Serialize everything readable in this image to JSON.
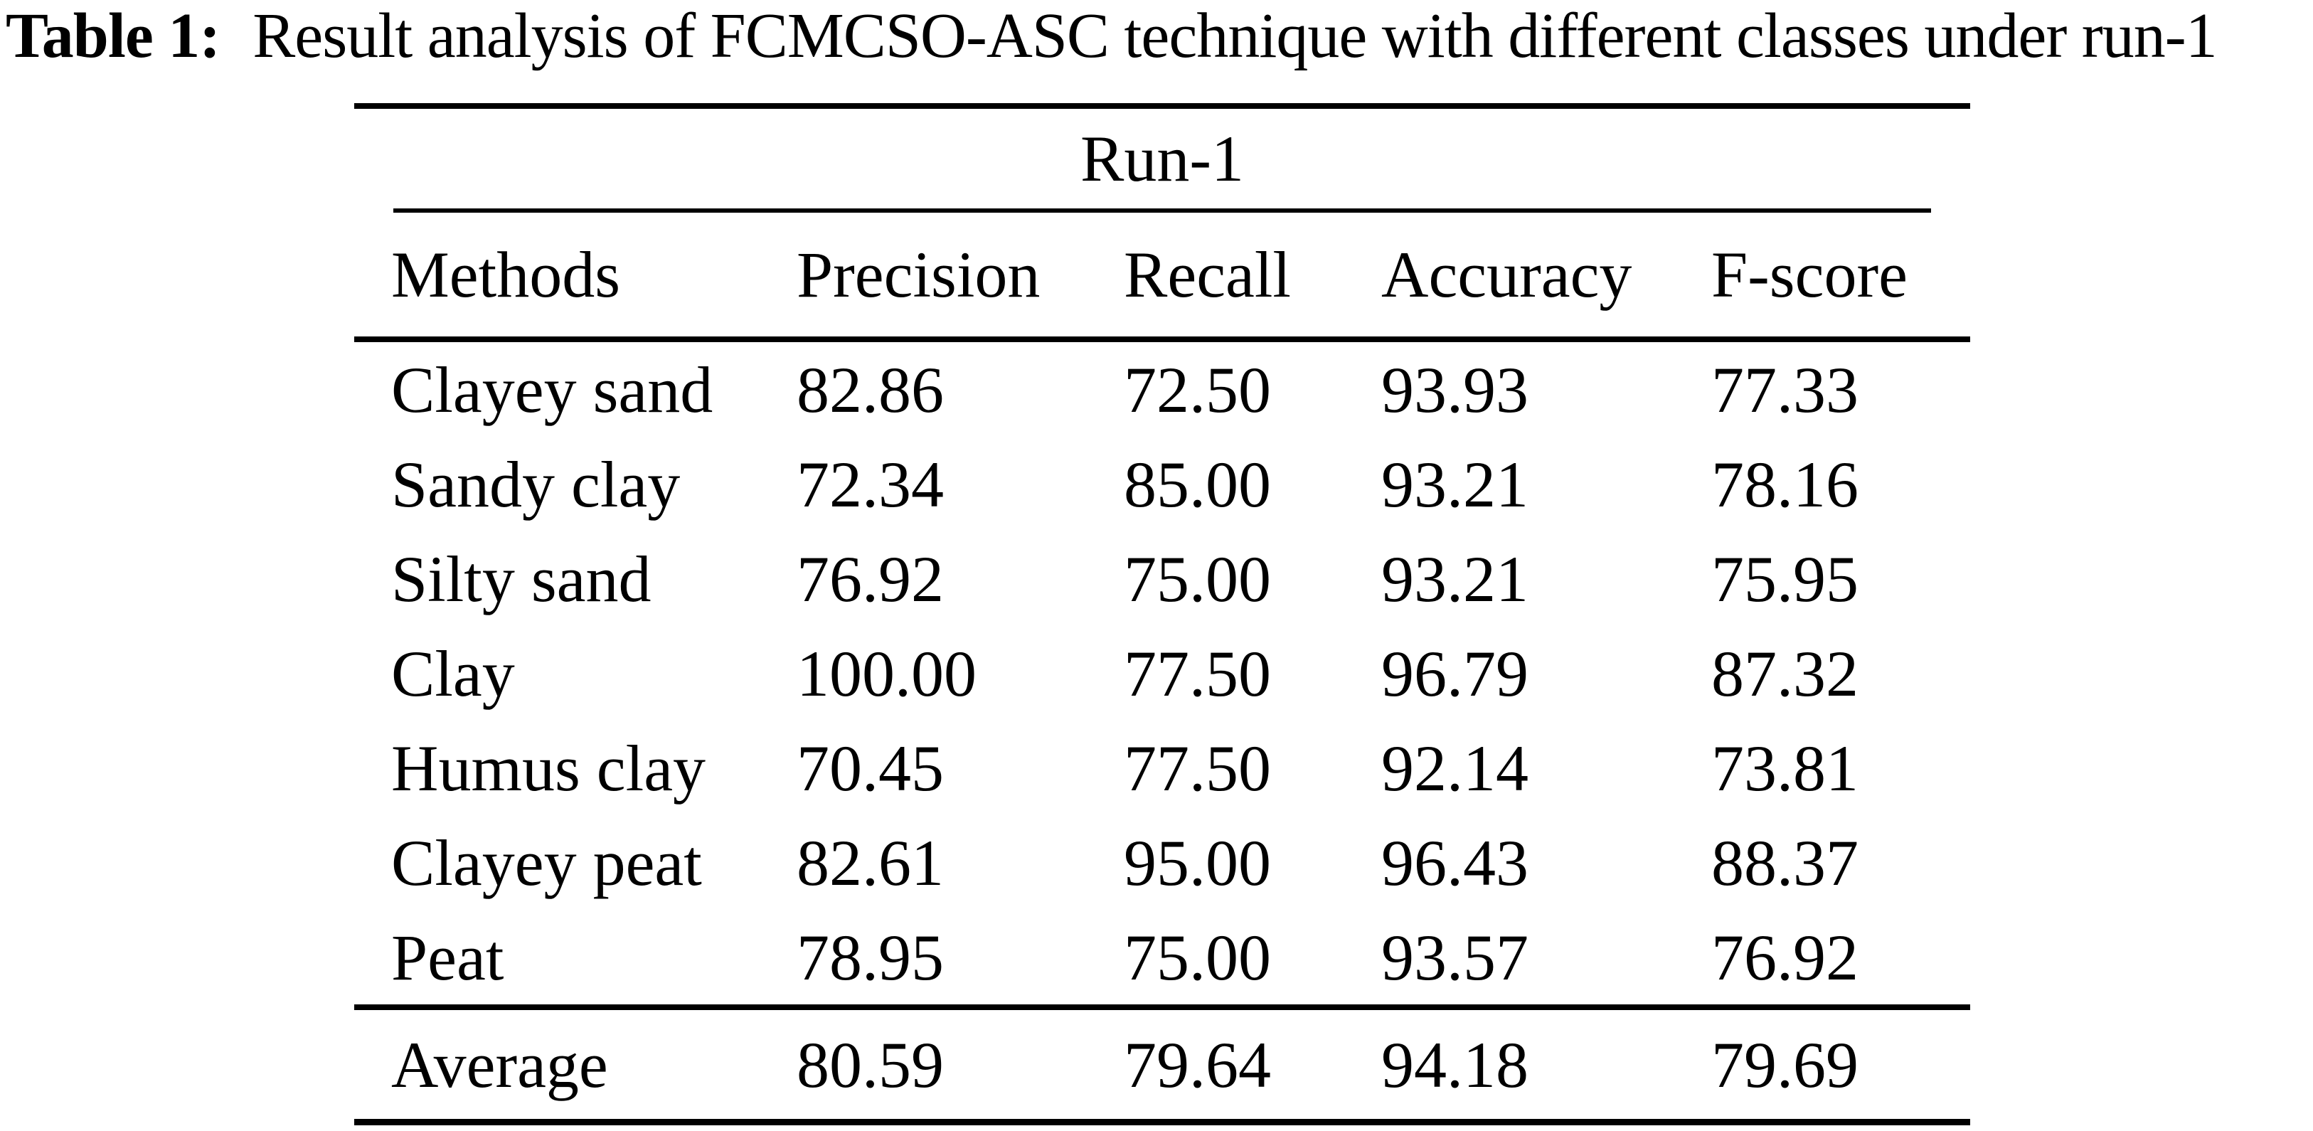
{
  "caption": {
    "label": "Table 1:",
    "text": "Result analysis of FCMCSO-ASC technique with different classes under run-1"
  },
  "table": {
    "span_header": "Run-1",
    "columns": [
      "Methods",
      "Precision",
      "Recall",
      "Accuracy",
      "F-score"
    ],
    "rows": [
      {
        "method": "Clayey sand",
        "values": [
          "82.86",
          "72.50",
          "93.93",
          "77.33"
        ]
      },
      {
        "method": "Sandy clay",
        "values": [
          "72.34",
          "85.00",
          "93.21",
          "78.16"
        ]
      },
      {
        "method": "Silty sand",
        "values": [
          "76.92",
          "75.00",
          "93.21",
          "75.95"
        ]
      },
      {
        "method": "Clay",
        "values": [
          "100.00",
          "77.50",
          "96.79",
          "87.32"
        ]
      },
      {
        "method": "Humus clay",
        "values": [
          "70.45",
          "77.50",
          "92.14",
          "73.81"
        ]
      },
      {
        "method": "Clayey peat",
        "values": [
          "82.61",
          "95.00",
          "96.43",
          "88.37"
        ]
      },
      {
        "method": "Peat",
        "values": [
          "78.95",
          "75.00",
          "93.57",
          "76.92"
        ]
      }
    ],
    "footer": {
      "method": "Average",
      "values": [
        "80.59",
        "79.64",
        "94.18",
        "79.69"
      ]
    }
  },
  "colors": {
    "text": "#000000",
    "background": "#ffffff",
    "rule": "#000000"
  }
}
